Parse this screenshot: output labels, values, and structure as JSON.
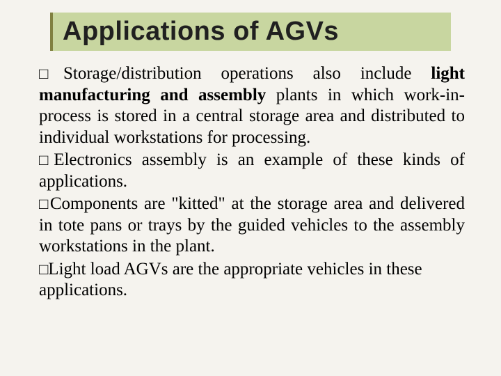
{
  "slide": {
    "title": "Applications of AGVs",
    "title_fontsize": 38,
    "title_fontfamily": "Arial, Helvetica, sans-serif",
    "title_bar_bg": "#c8d6a0",
    "title_bar_border_color": "#808040",
    "body_fontsize": 25,
    "body_fontfamily": "Georgia, 'Times New Roman', serif",
    "body_color": "#000000",
    "background_color": "#f5f3ee",
    "bullet_glyph": "□",
    "bullets": [
      {
        "runs": [
          {
            "text": "Storage/distribution operations also include ",
            "bold": false
          },
          {
            "text": "light manufacturing and assembly ",
            "bold": true
          },
          {
            "text": "plants in which work-in-process is stored in a central storage area and distributed to individual workstations for processing.",
            "bold": false
          }
        ],
        "justify": true
      },
      {
        "runs": [
          {
            "text": "Electronics assembly is an example of these kinds of applications.",
            "bold": false
          }
        ],
        "justify": true
      },
      {
        "runs": [
          {
            "text": "Components are \"kitted\" at the storage area and delivered in tote pans or trays by the guided vehicles to the assembly workstations in the plant.",
            "bold": false
          }
        ],
        "justify": true
      },
      {
        "runs": [
          {
            "text": "Light load AGVs are the appropriate vehicles in these applications.",
            "bold": false
          }
        ],
        "justify": false
      }
    ]
  }
}
